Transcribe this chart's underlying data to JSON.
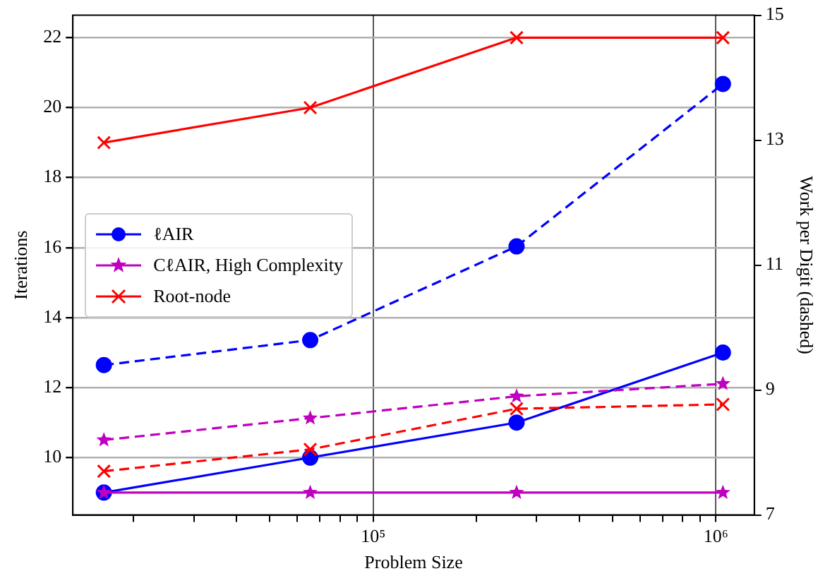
{
  "chart_data": {
    "type": "line",
    "xlabel": "Problem Size",
    "ylabel": "Iterations",
    "y2label": "Work per Digit (dashed)",
    "x": [
      16384,
      65536,
      262144,
      1048576
    ],
    "log": "x",
    "grid": true,
    "legend": "center left",
    "xlim": [
      13300,
      1295000
    ],
    "xticks": [
      {
        "value": 20000,
        "label": null
      },
      {
        "value": 30000,
        "label": null
      },
      {
        "value": 40000,
        "label": null
      },
      {
        "value": 50000,
        "label": null
      },
      {
        "value": 60000,
        "label": null
      },
      {
        "value": 70000,
        "label": null
      },
      {
        "value": 80000,
        "label": null
      },
      {
        "value": 90000,
        "label": null
      },
      {
        "value": 100000,
        "label": "10⁵"
      },
      {
        "value": 200000,
        "label": null
      },
      {
        "value": 300000,
        "label": null
      },
      {
        "value": 400000,
        "label": null
      },
      {
        "value": 500000,
        "label": null
      },
      {
        "value": 600000,
        "label": null
      },
      {
        "value": 700000,
        "label": null
      },
      {
        "value": 800000,
        "label": null
      },
      {
        "value": 900000,
        "label": null
      },
      {
        "value": 1000000,
        "label": "10⁶"
      }
    ],
    "ylim": [
      8.36,
      22.64
    ],
    "yticks": [
      10,
      12,
      14,
      16,
      18,
      20,
      22
    ],
    "y2lim": [
      7,
      15
    ],
    "y2ticks": [
      7,
      9,
      11,
      13,
      15
    ],
    "series": [
      {
        "name": "ℓAIR",
        "color": "#0000ff",
        "marker": "circle",
        "line_style": "solid",
        "values": [
          9,
          10,
          11,
          13
        ]
      },
      {
        "name": "CℓAIR, High Complexity",
        "color": "#bf00bf",
        "marker": "star",
        "line_style": "solid",
        "values": [
          9,
          9,
          9,
          9
        ]
      },
      {
        "name": "Root-node",
        "color": "#ff0000",
        "marker": "cross",
        "line_style": "solid",
        "values": [
          19,
          20,
          22,
          22
        ]
      },
      {
        "color": "#0000ff",
        "marker": "circle",
        "line_style": "dashed",
        "axis": "y2",
        "values": [
          9.4,
          9.8,
          11.3,
          13.9
        ]
      },
      {
        "color": "#bf00bf",
        "marker": "star",
        "line_style": "dashed",
        "axis": "y2",
        "values": [
          8.2,
          8.55,
          8.9,
          9.1
        ]
      },
      {
        "color": "#ff0000",
        "marker": "cross",
        "line_style": "dashed",
        "axis": "y2",
        "values": [
          7.7,
          8.05,
          8.7,
          8.77
        ]
      }
    ]
  }
}
